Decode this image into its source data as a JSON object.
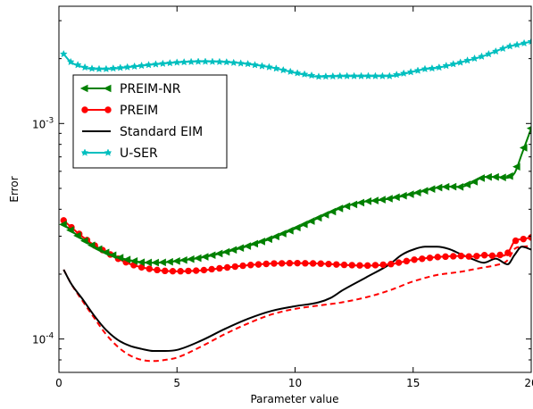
{
  "chart_data": {
    "type": "line",
    "title": "",
    "xlabel": "Parameter value",
    "ylabel": "Error",
    "xlim": [
      0,
      20
    ],
    "ylim": [
      7e-05,
      0.0035
    ],
    "yscale": "log",
    "grid": false,
    "legend_position": "upper-left",
    "x_ticks": [
      0,
      5,
      10,
      15,
      20
    ],
    "x_tick_labels": [
      "0",
      "5",
      "10",
      "15",
      "20"
    ],
    "y_ticks": [
      0.0001,
      0.001
    ],
    "y_tick_labels": [
      "10^-4",
      "10^-3"
    ],
    "series": [
      {
        "name": "PREIM-NR",
        "color": "#008000",
        "marker": "triangle-left",
        "x": [
          0.2,
          0.5,
          1,
          1.5,
          2,
          2.5,
          3,
          3.5,
          4,
          4.5,
          5,
          6,
          7,
          8,
          9,
          10,
          11,
          12,
          13,
          13.5,
          14,
          15,
          16,
          16.5,
          17,
          17.5,
          18,
          18.5,
          19,
          19.3,
          19.6,
          20
        ],
        "values": [
          0.00034,
          0.00032,
          0.00029,
          0.000268,
          0.000252,
          0.00024,
          0.000232,
          0.000227,
          0.000226,
          0.000227,
          0.00023,
          0.000238,
          0.000252,
          0.00027,
          0.000293,
          0.000325,
          0.000365,
          0.000408,
          0.000435,
          0.00044,
          0.000448,
          0.000472,
          0.000503,
          0.00051,
          0.000508,
          0.00053,
          0.000565,
          0.000565,
          0.00056,
          0.00059,
          0.00072,
          0.00095
        ]
      },
      {
        "name": "PREIM",
        "color": "#ff0000",
        "marker": "circle",
        "x": [
          0.2,
          0.5,
          1,
          1.5,
          2,
          2.5,
          3,
          3.5,
          4,
          4.5,
          5,
          6,
          7,
          8,
          9,
          10,
          11,
          12,
          13,
          14,
          15,
          16,
          17,
          17.5,
          18,
          18.5,
          19,
          19.3,
          19.6,
          20
        ],
        "values": [
          0.000355,
          0.000332,
          0.000298,
          0.000272,
          0.000253,
          0.000236,
          0.000223,
          0.000215,
          0.00021,
          0.000207,
          0.000206,
          0.000208,
          0.000214,
          0.00022,
          0.000224,
          0.000225,
          0.000224,
          0.000221,
          0.000219,
          0.000222,
          0.000233,
          0.00024,
          0.000243,
          0.000241,
          0.000245,
          0.000243,
          0.00025,
          0.000285,
          0.00029,
          0.000296
        ]
      },
      {
        "name": "Standard EIM",
        "color": "#000000",
        "marker": "none",
        "x": [
          0.2,
          0.5,
          1,
          1.5,
          2,
          2.5,
          3,
          3.5,
          4,
          4.5,
          5,
          6,
          7,
          8,
          9,
          10,
          11,
          11.5,
          12,
          13,
          14,
          14.5,
          15,
          15.5,
          16,
          16.5,
          17,
          17.5,
          18,
          18.5,
          19,
          19.3,
          19.6,
          20
        ],
        "values": [
          0.00021,
          0.000182,
          0.000153,
          0.000128,
          0.00011,
          9.9e-05,
          9.3e-05,
          9e-05,
          8.8e-05,
          8.8e-05,
          8.9e-05,
          9.8e-05,
          0.000111,
          0.000124,
          0.000135,
          0.000142,
          0.000148,
          0.000155,
          0.000168,
          0.000193,
          0.000222,
          0.000245,
          0.00026,
          0.000268,
          0.000268,
          0.000262,
          0.000248,
          0.000235,
          0.000226,
          0.000236,
          0.000222,
          0.000246,
          0.000268,
          0.00026
        ]
      },
      {
        "name": "Standard EIM (red dashed)",
        "color": "#ff0000",
        "marker": "none",
        "dashed": true,
        "x": [
          0.2,
          0.5,
          1,
          1.5,
          2,
          2.5,
          3,
          3.5,
          4,
          4.5,
          5,
          6,
          7,
          8,
          9,
          10,
          11,
          12,
          13,
          14,
          15,
          16,
          17,
          17.5,
          18,
          18.5,
          19,
          19.3,
          19.6,
          20
        ],
        "values": [
          0.00021,
          0.000182,
          0.00015,
          0.000125,
          0.000105,
          9.2e-05,
          8.4e-05,
          8e-05,
          7.9e-05,
          8e-05,
          8.2e-05,
          9.2e-05,
          0.000105,
          0.000118,
          0.00013,
          0.000138,
          0.000143,
          0.000148,
          0.000156,
          0.000168,
          0.000185,
          0.000198,
          0.000205,
          0.00021,
          0.000215,
          0.00022,
          0.000232,
          0.000262,
          0.000268,
          0.00027
        ]
      },
      {
        "name": "U-SER",
        "color": "#00bfbf",
        "marker": "star",
        "x": [
          0.2,
          0.5,
          1,
          1.5,
          2,
          3,
          4,
          5,
          6,
          7,
          8,
          9,
          10,
          11,
          12,
          13,
          14,
          15,
          15.5,
          16,
          17,
          18,
          19,
          19.5,
          20
        ],
        "values": [
          0.0021,
          0.00193,
          0.00183,
          0.00179,
          0.00179,
          0.00183,
          0.00188,
          0.00192,
          0.00194,
          0.00193,
          0.00189,
          0.00182,
          0.00172,
          0.00165,
          0.00166,
          0.00166,
          0.00166,
          0.00174,
          0.00179,
          0.00181,
          0.00192,
          0.00206,
          0.00227,
          0.00233,
          0.0024
        ]
      }
    ],
    "legend": [
      "PREIM-NR",
      "PREIM",
      "Standard EIM",
      "U-SER"
    ]
  }
}
